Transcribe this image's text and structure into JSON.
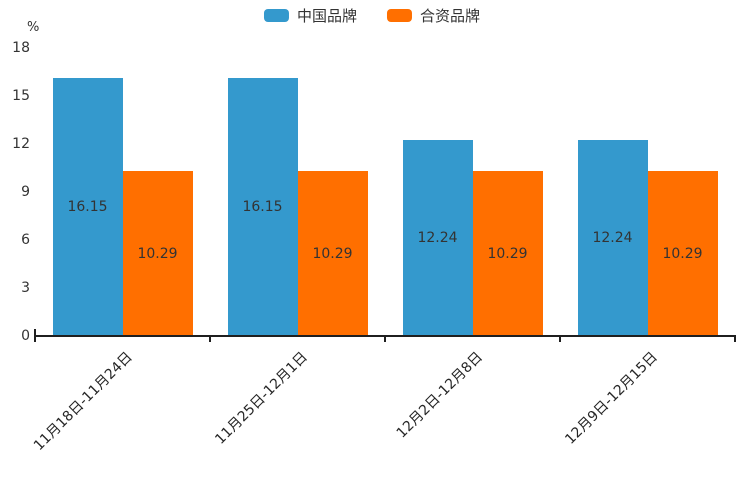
{
  "chart_data": {
    "type": "bar",
    "title": "",
    "unit_label": "%",
    "categories": [
      "11月18日-11月24日",
      "11月25日-12月1日",
      "12月2日-12月8日",
      "12月9日-12月15日"
    ],
    "series": [
      {
        "name": "中国品牌",
        "color": "#3499cd",
        "values": [
          16.15,
          16.15,
          12.24,
          12.24
        ]
      },
      {
        "name": "合资品牌",
        "color": "#ff6f00",
        "values": [
          10.29,
          10.29,
          10.29,
          10.29
        ]
      }
    ],
    "ylim": [
      0,
      18
    ],
    "yticks": [
      0,
      3,
      6,
      9,
      12,
      15,
      18
    ],
    "legend_position": "top-center",
    "grid": false,
    "value_labels": "inside-center",
    "value_label_color": "#333333",
    "xlabel_rotation": 45,
    "axis_color": "#1f1f1f"
  }
}
